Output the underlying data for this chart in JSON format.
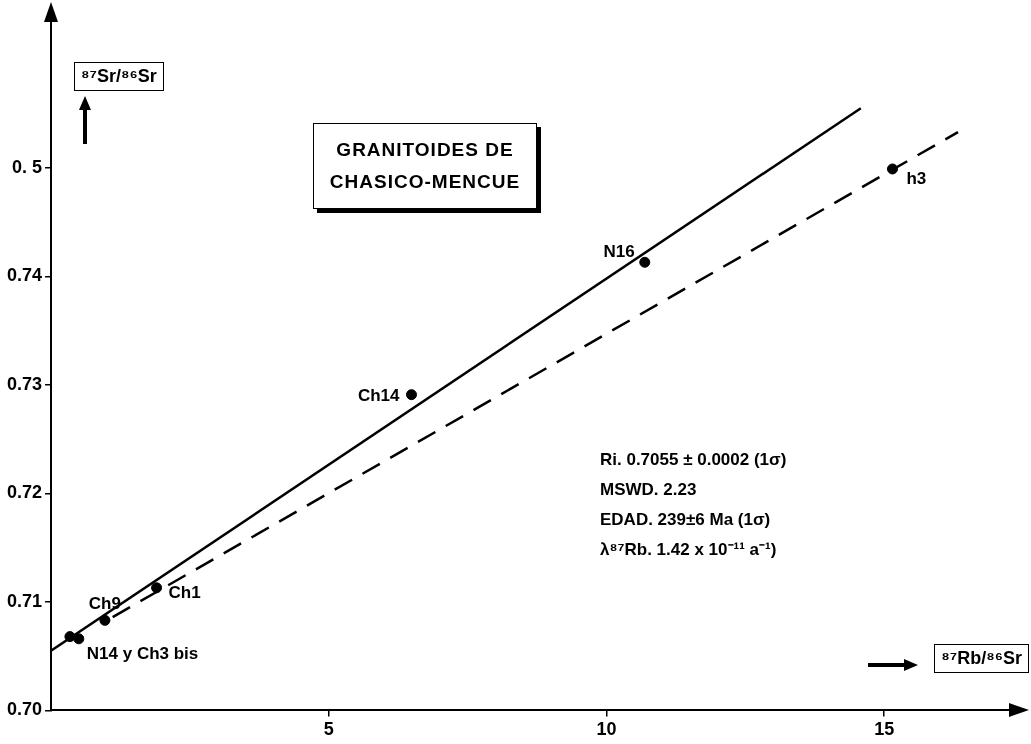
{
  "chart_data": {
    "type": "scatter",
    "title": "GRANITOIDES DE CHASICO-MENCUE",
    "xlabel": "⁸⁷Rb/⁸⁶Sr",
    "ylabel": "⁸⁷Sr/⁸⁶Sr",
    "xlim": [
      0,
      17.5
    ],
    "ylim": [
      0.7,
      0.764
    ],
    "xticks": [
      5,
      10,
      15
    ],
    "yticks": [
      {
        "value": 0.7,
        "label": "0.70"
      },
      0.71,
      0.72,
      0.73,
      0.74,
      {
        "value": 0.75,
        "label": "0. 5"
      }
    ],
    "series": [
      {
        "color": "#000000",
        "marker": "circle",
        "x": [
          0.34,
          0.5,
          0.97,
          1.9,
          6.49,
          10.69,
          15.15
        ],
        "values": [
          0.7068,
          0.7066,
          0.7083,
          0.7113,
          0.7291,
          0.7413,
          0.7499
        ]
      },
      {
        "type": "line",
        "marker": "none",
        "color": "#000000",
        "line_style": "solid",
        "x": [
          0,
          14.58
        ],
        "values": [
          0.7055,
          0.7555
        ]
      },
      {
        "type": "line",
        "marker": "none",
        "color": "#000000",
        "line_style": "dashed",
        "x": [
          1.11,
          16.33
        ],
        "values": [
          0.7086,
          0.7533
        ]
      }
    ],
    "grid": false,
    "legend": false,
    "annotations": [
      {
        "text": "Ch9",
        "x": 0.97,
        "y": 0.7083
      },
      {
        "text": "N14 y Ch3 bis",
        "x": 0.5,
        "y": 0.7066
      },
      {
        "text": "Ch1",
        "x": 1.9,
        "y": 0.7113
      },
      {
        "text": "Ch14",
        "x": 6.49,
        "y": 0.7291
      },
      {
        "text": "N16",
        "x": 10.69,
        "y": 0.7413
      },
      {
        "text": "h3",
        "x": 15.15,
        "y": 0.7499
      },
      "Ri. 0.7055 ± 0.0002 (1σ)",
      "MSWD. 2.23",
      "EDAD. 239±6 Ma (1σ)",
      "λ⁸⁷Rb. 1.42 x 10⁻¹¹ a⁻¹)"
    ]
  }
}
